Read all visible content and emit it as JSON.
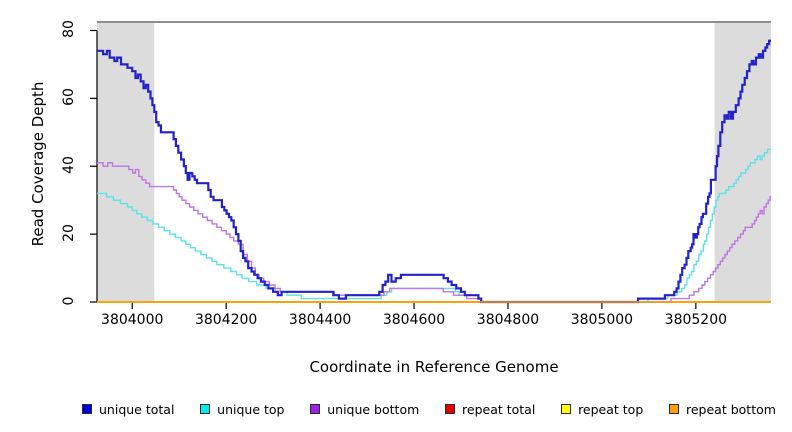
{
  "figure": {
    "background": "#ffffff",
    "band_color": "#dcdcdc",
    "top_rule_color": "#8e8e8e",
    "axis_color": "#000000"
  },
  "y_axis": {
    "title": "Read Coverage Depth",
    "ticks": [
      0,
      20,
      40,
      60,
      80
    ],
    "range": [
      0,
      82.5
    ]
  },
  "x_axis": {
    "title": "Coordinate in Reference Genome",
    "ticks": [
      3804000,
      3804200,
      3804400,
      3804600,
      3804800,
      3805000,
      3805200
    ],
    "range": [
      3803925,
      3805360
    ]
  },
  "legend": [
    {
      "label": "unique total",
      "color": "#0000e0"
    },
    {
      "label": "unique top",
      "color": "#00eded"
    },
    {
      "label": "unique bottom",
      "color": "#a020f0"
    },
    {
      "label": "repeat total",
      "color": "#e60000"
    },
    {
      "label": "repeat top",
      "color": "#ffff00"
    },
    {
      "label": "repeat bottom",
      "color": "#ff9f00"
    }
  ],
  "chart_data": {
    "type": "line",
    "title": "",
    "xlabel": "Coordinate in Reference Genome",
    "ylabel": "Read Coverage Depth",
    "xlim": [
      3803925,
      3805360
    ],
    "ylim": [
      0,
      82.5
    ],
    "grid": false,
    "legend_position": "bottom",
    "shaded_regions": [
      {
        "x_start": 3803925,
        "x_end": 3804047
      },
      {
        "x_start": 3805240,
        "x_end": 3805360
      }
    ],
    "top_rule_y": 82.5,
    "note": "step curves; points are [coordinate, depth] vertices, value holds until next vertex",
    "series": [
      {
        "name": "repeat total",
        "color": "#e60000",
        "stroke": "#e60000",
        "width": 1.4,
        "points": [
          [
            3803925,
            0
          ]
        ]
      },
      {
        "name": "repeat top",
        "color": "#ffff00",
        "stroke": "#ffff00",
        "width": 1.4,
        "points": [
          [
            3803925,
            0
          ]
        ]
      },
      {
        "name": "unique top",
        "color": "#00eded",
        "stroke": "#5de2e8",
        "width": 1.4,
        "points": [
          [
            3803925,
            32
          ],
          [
            3803945,
            31
          ],
          [
            3803960,
            30
          ],
          [
            3803975,
            29
          ],
          [
            3803990,
            28
          ],
          [
            3804000,
            27
          ],
          [
            3804010,
            26
          ],
          [
            3804020,
            25
          ],
          [
            3804032,
            24
          ],
          [
            3804044,
            23
          ],
          [
            3804056,
            22
          ],
          [
            3804068,
            21
          ],
          [
            3804080,
            20
          ],
          [
            3804092,
            19
          ],
          [
            3804104,
            18
          ],
          [
            3804114,
            17
          ],
          [
            3804124,
            16
          ],
          [
            3804134,
            15
          ],
          [
            3804146,
            14
          ],
          [
            3804158,
            13
          ],
          [
            3804170,
            12
          ],
          [
            3804180,
            11
          ],
          [
            3804195,
            10
          ],
          [
            3804210,
            9
          ],
          [
            3804222,
            8
          ],
          [
            3804234,
            7
          ],
          [
            3804248,
            6
          ],
          [
            3804265,
            5
          ],
          [
            3804285,
            4
          ],
          [
            3804305,
            3
          ],
          [
            3804330,
            2
          ],
          [
            3804360,
            1
          ],
          [
            3804530,
            2
          ],
          [
            3804542,
            3
          ],
          [
            3804552,
            4
          ],
          [
            3804688,
            3
          ],
          [
            3804696,
            2
          ],
          [
            3804737,
            1
          ],
          [
            3804743,
            0
          ],
          [
            3805098,
            1
          ],
          [
            3805140,
            2
          ],
          [
            3805160,
            3
          ],
          [
            3805170,
            4
          ],
          [
            3805176,
            5
          ],
          [
            3805181,
            7
          ],
          [
            3805186,
            8
          ],
          [
            3805191,
            9
          ],
          [
            3805196,
            11
          ],
          [
            3805201,
            12
          ],
          [
            3805206,
            14
          ],
          [
            3805211,
            15
          ],
          [
            3805216,
            17
          ],
          [
            3805219,
            18
          ],
          [
            3805223,
            20
          ],
          [
            3805227,
            22
          ],
          [
            3805231,
            24
          ],
          [
            3805235,
            26
          ],
          [
            3805239,
            28
          ],
          [
            3805243,
            30
          ],
          [
            3805247,
            31
          ],
          [
            3805250,
            32
          ],
          [
            3805264,
            33
          ],
          [
            3805270,
            34
          ],
          [
            3805281,
            35
          ],
          [
            3805286,
            36
          ],
          [
            3805291,
            37
          ],
          [
            3805296,
            38
          ],
          [
            3805306,
            39
          ],
          [
            3805311,
            40
          ],
          [
            3805316,
            41
          ],
          [
            3805326,
            42
          ],
          [
            3805331,
            43
          ],
          [
            3805337,
            42
          ],
          [
            3805341,
            43
          ],
          [
            3805346,
            44
          ],
          [
            3805353,
            45
          ]
        ]
      },
      {
        "name": "unique bottom",
        "color": "#a020f0",
        "stroke": "#bd76e4",
        "width": 1.4,
        "points": [
          [
            3803925,
            41
          ],
          [
            3803938,
            40
          ],
          [
            3803948,
            41
          ],
          [
            3803958,
            40
          ],
          [
            3803993,
            39
          ],
          [
            3804001,
            38
          ],
          [
            3804007,
            39
          ],
          [
            3804014,
            37
          ],
          [
            3804021,
            36
          ],
          [
            3804029,
            35
          ],
          [
            3804037,
            34
          ],
          [
            3804088,
            33
          ],
          [
            3804094,
            32
          ],
          [
            3804100,
            31
          ],
          [
            3804106,
            30
          ],
          [
            3804114,
            29
          ],
          [
            3804122,
            28
          ],
          [
            3804131,
            27
          ],
          [
            3804140,
            26
          ],
          [
            3804150,
            25
          ],
          [
            3804160,
            24
          ],
          [
            3804170,
            23
          ],
          [
            3804180,
            22
          ],
          [
            3804190,
            21
          ],
          [
            3804200,
            20
          ],
          [
            3804208,
            19
          ],
          [
            3804216,
            18
          ],
          [
            3804226,
            17
          ],
          [
            3804236,
            14
          ],
          [
            3804245,
            12
          ],
          [
            3804254,
            10
          ],
          [
            3804262,
            8
          ],
          [
            3804270,
            7
          ],
          [
            3804280,
            6
          ],
          [
            3804292,
            5
          ],
          [
            3804304,
            4
          ],
          [
            3804315,
            3
          ],
          [
            3804430,
            2
          ],
          [
            3804536,
            3
          ],
          [
            3804548,
            4
          ],
          [
            3804662,
            3
          ],
          [
            3804684,
            2
          ],
          [
            3804712,
            1
          ],
          [
            3804743,
            0
          ],
          [
            3805147,
            1
          ],
          [
            3805186,
            2
          ],
          [
            3805196,
            3
          ],
          [
            3805206,
            4
          ],
          [
            3805213,
            5
          ],
          [
            3805219,
            6
          ],
          [
            3805225,
            7
          ],
          [
            3805231,
            8
          ],
          [
            3805237,
            9
          ],
          [
            3805242,
            10
          ],
          [
            3805247,
            11
          ],
          [
            3805252,
            12
          ],
          [
            3805257,
            13
          ],
          [
            3805262,
            14
          ],
          [
            3805267,
            15
          ],
          [
            3805272,
            16
          ],
          [
            3805277,
            17
          ],
          [
            3805283,
            18
          ],
          [
            3805289,
            19
          ],
          [
            3805295,
            20
          ],
          [
            3805301,
            21
          ],
          [
            3805305,
            22
          ],
          [
            3805320,
            23
          ],
          [
            3805325,
            24
          ],
          [
            3805329,
            25
          ],
          [
            3805333,
            26
          ],
          [
            3805337,
            27
          ],
          [
            3805341,
            26
          ],
          [
            3805345,
            28
          ],
          [
            3805350,
            29
          ],
          [
            3805354,
            30
          ],
          [
            3805358,
            31
          ]
        ]
      },
      {
        "name": "unique total",
        "color": "#0000e0",
        "stroke": "#2222cc",
        "width": 2.2,
        "points": [
          [
            3803925,
            74
          ],
          [
            3803938,
            73
          ],
          [
            3803946,
            74
          ],
          [
            3803952,
            72
          ],
          [
            3803962,
            71
          ],
          [
            3803968,
            72
          ],
          [
            3803976,
            70
          ],
          [
            3803990,
            69
          ],
          [
            3804000,
            68
          ],
          [
            3804007,
            66
          ],
          [
            3804012,
            67
          ],
          [
            3804018,
            65
          ],
          [
            3804024,
            63
          ],
          [
            3804029,
            64
          ],
          [
            3804034,
            62
          ],
          [
            3804039,
            60
          ],
          [
            3804043,
            58
          ],
          [
            3804047,
            56
          ],
          [
            3804051,
            53
          ],
          [
            3804056,
            52
          ],
          [
            3804061,
            50
          ],
          [
            3804088,
            48
          ],
          [
            3804093,
            46
          ],
          [
            3804098,
            44
          ],
          [
            3804104,
            42
          ],
          [
            3804110,
            40
          ],
          [
            3804114,
            38
          ],
          [
            3804118,
            36
          ],
          [
            3804122,
            38
          ],
          [
            3804128,
            37
          ],
          [
            3804133,
            36
          ],
          [
            3804138,
            35
          ],
          [
            3804162,
            33
          ],
          [
            3804167,
            31
          ],
          [
            3804173,
            30
          ],
          [
            3804191,
            28
          ],
          [
            3804196,
            27
          ],
          [
            3804201,
            26
          ],
          [
            3804206,
            25
          ],
          [
            3804211,
            24
          ],
          [
            3804216,
            22
          ],
          [
            3804221,
            20
          ],
          [
            3804226,
            18
          ],
          [
            3804231,
            15
          ],
          [
            3804236,
            13
          ],
          [
            3804241,
            12
          ],
          [
            3804247,
            10
          ],
          [
            3804254,
            9
          ],
          [
            3804260,
            8
          ],
          [
            3804267,
            7
          ],
          [
            3804274,
            6
          ],
          [
            3804282,
            5
          ],
          [
            3804290,
            4
          ],
          [
            3804300,
            3
          ],
          [
            3804310,
            2
          ],
          [
            3804318,
            3
          ],
          [
            3804428,
            2
          ],
          [
            3804440,
            1
          ],
          [
            3804455,
            2
          ],
          [
            3804526,
            3
          ],
          [
            3804533,
            5
          ],
          [
            3804539,
            6
          ],
          [
            3804545,
            8
          ],
          [
            3804552,
            6
          ],
          [
            3804561,
            7
          ],
          [
            3804572,
            8
          ],
          [
            3804663,
            7
          ],
          [
            3804672,
            6
          ],
          [
            3804680,
            5
          ],
          [
            3804690,
            4
          ],
          [
            3804700,
            3
          ],
          [
            3804708,
            2
          ],
          [
            3804737,
            1
          ],
          [
            3804743,
            0
          ],
          [
            3805077,
            1
          ],
          [
            3805134,
            2
          ],
          [
            3805154,
            3
          ],
          [
            3805159,
            4
          ],
          [
            3805163,
            6
          ],
          [
            3805167,
            8
          ],
          [
            3805171,
            10
          ],
          [
            3805176,
            11
          ],
          [
            3805180,
            13
          ],
          [
            3805184,
            15
          ],
          [
            3805189,
            16
          ],
          [
            3805192,
            17
          ],
          [
            3805195,
            20
          ],
          [
            3805199,
            19
          ],
          [
            3805202,
            20
          ],
          [
            3805205,
            22
          ],
          [
            3805208,
            23
          ],
          [
            3805212,
            25
          ],
          [
            3805215,
            26
          ],
          [
            3805222,
            29
          ],
          [
            3805226,
            31
          ],
          [
            3805229,
            32
          ],
          [
            3805232,
            36
          ],
          [
            3805242,
            40
          ],
          [
            3805245,
            43
          ],
          [
            3805248,
            46
          ],
          [
            3805252,
            50
          ],
          [
            3805256,
            53
          ],
          [
            3805261,
            55
          ],
          [
            3805266,
            54
          ],
          [
            3805270,
            56
          ],
          [
            3805275,
            54
          ],
          [
            3805279,
            56
          ],
          [
            3805285,
            58
          ],
          [
            3805291,
            60
          ],
          [
            3805295,
            62
          ],
          [
            3805299,
            64
          ],
          [
            3805304,
            66
          ],
          [
            3805309,
            68
          ],
          [
            3805314,
            70
          ],
          [
            3805319,
            71
          ],
          [
            3805323,
            70
          ],
          [
            3805328,
            72
          ],
          [
            3805334,
            73
          ],
          [
            3805338,
            72
          ],
          [
            3805343,
            74
          ],
          [
            3805348,
            75
          ],
          [
            3805352,
            76
          ],
          [
            3805356,
            77
          ]
        ]
      },
      {
        "name": "repeat bottom",
        "color": "#ff9f00",
        "stroke": "#ff9f00",
        "width": 1.6,
        "points": [
          [
            3803925,
            0
          ]
        ]
      }
    ]
  }
}
